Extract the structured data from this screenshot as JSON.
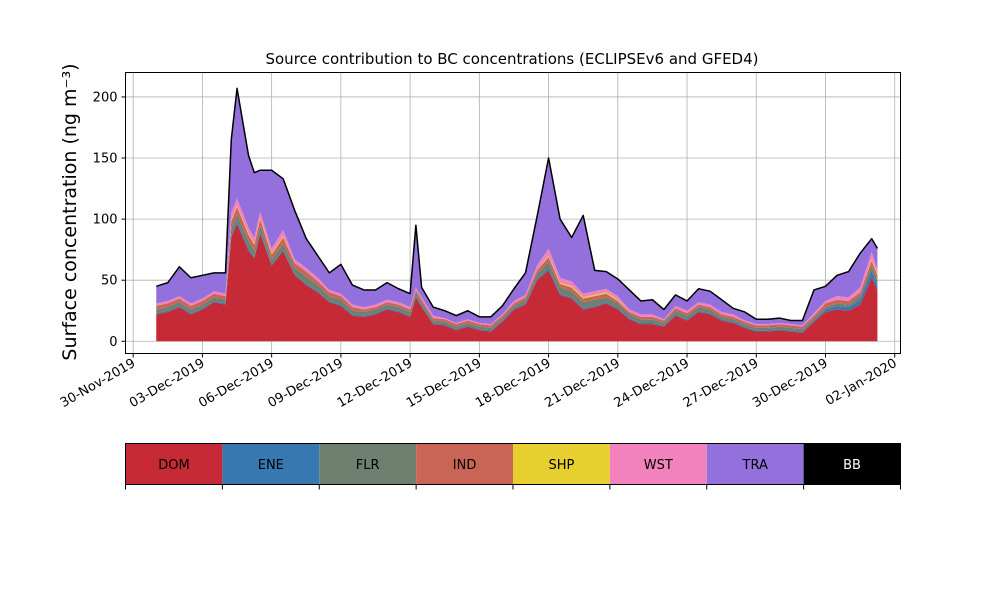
{
  "chart_data": {
    "type": "area",
    "title": "Source contribution to BC concentrations (ECLIPSEv6 and GFED4)",
    "ylabel": "Surface concentration (ng m⁻³)",
    "xlabel": "",
    "xlim": [
      "2019-11-29T16:00",
      "2020-01-02T06:00"
    ],
    "ylim": [
      -10,
      220
    ],
    "grid": true,
    "x_ticks": [
      "2019-11-30",
      "2019-12-03",
      "2019-12-06",
      "2019-12-09",
      "2019-12-12",
      "2019-12-15",
      "2019-12-18",
      "2019-12-21",
      "2019-12-24",
      "2019-12-27",
      "2019-12-30",
      "2020-01-02"
    ],
    "x_tick_labels": [
      "30-Nov-2019",
      "03-Dec-2019",
      "06-Dec-2019",
      "09-Dec-2019",
      "12-Dec-2019",
      "15-Dec-2019",
      "18-Dec-2019",
      "21-Dec-2019",
      "24-Dec-2019",
      "27-Dec-2019",
      "30-Dec-2019",
      "02-Jan-2020"
    ],
    "y_ticks": [
      0,
      50,
      100,
      150,
      200
    ],
    "y_tick_labels": [
      "0",
      "50",
      "100",
      "150",
      "200"
    ],
    "legend": {
      "placement": "bottom",
      "entries": [
        {
          "label": "DOM",
          "color": "#c62a37",
          "text_color": "#000000"
        },
        {
          "label": "ENE",
          "color": "#3878b0",
          "text_color": "#000000"
        },
        {
          "label": "FLR",
          "color": "#6e8070",
          "text_color": "#000000"
        },
        {
          "label": "IND",
          "color": "#c96556",
          "text_color": "#000000"
        },
        {
          "label": "SHP",
          "color": "#e6cf2e",
          "text_color": "#000000"
        },
        {
          "label": "WST",
          "color": "#f282bd",
          "text_color": "#000000"
        },
        {
          "label": "TRA",
          "color": "#9370db",
          "text_color": "#000000"
        },
        {
          "label": "BB",
          "color": "#000000",
          "text_color": "#ffffff"
        }
      ]
    },
    "total_line_color": "#000000",
    "series_order": [
      "DOM",
      "ENE",
      "FLR",
      "IND",
      "SHP",
      "WST",
      "TRA",
      "BB"
    ],
    "dates": [
      "2019-12-01T00:00",
      "2019-12-01T12:00",
      "2019-12-02T00:00",
      "2019-12-02T12:00",
      "2019-12-03T00:00",
      "2019-12-03T12:00",
      "2019-12-04T00:00",
      "2019-12-04T06:00",
      "2019-12-04T12:00",
      "2019-12-05T00:00",
      "2019-12-05T06:00",
      "2019-12-05T12:00",
      "2019-12-06T00:00",
      "2019-12-06T12:00",
      "2019-12-07T00:00",
      "2019-12-07T12:00",
      "2019-12-08T00:00",
      "2019-12-08T12:00",
      "2019-12-09T00:00",
      "2019-12-09T12:00",
      "2019-12-10T00:00",
      "2019-12-10T12:00",
      "2019-12-11T00:00",
      "2019-12-11T12:00",
      "2019-12-12T00:00",
      "2019-12-12T06:00",
      "2019-12-12T12:00",
      "2019-12-13T00:00",
      "2019-12-13T12:00",
      "2019-12-14T00:00",
      "2019-12-14T12:00",
      "2019-12-15T00:00",
      "2019-12-15T12:00",
      "2019-12-16T00:00",
      "2019-12-16T12:00",
      "2019-12-17T00:00",
      "2019-12-17T12:00",
      "2019-12-18T00:00",
      "2019-12-18T12:00",
      "2019-12-19T00:00",
      "2019-12-19T12:00",
      "2019-12-20T00:00",
      "2019-12-20T12:00",
      "2019-12-21T00:00",
      "2019-12-21T12:00",
      "2019-12-22T00:00",
      "2019-12-22T12:00",
      "2019-12-23T00:00",
      "2019-12-23T12:00",
      "2019-12-24T00:00",
      "2019-12-24T12:00",
      "2019-12-25T00:00",
      "2019-12-25T12:00",
      "2019-12-26T00:00",
      "2019-12-26T12:00",
      "2019-12-27T00:00",
      "2019-12-27T12:00",
      "2019-12-28T00:00",
      "2019-12-28T12:00",
      "2019-12-29T00:00",
      "2019-12-29T12:00",
      "2019-12-30T00:00",
      "2019-12-30T12:00",
      "2019-12-31T00:00",
      "2019-12-31T12:00",
      "2020-01-01T00:00",
      "2020-01-01T06:00"
    ],
    "series": [
      {
        "name": "DOM",
        "values": [
          22,
          24,
          28,
          22,
          26,
          32,
          30,
          85,
          96,
          74,
          68,
          88,
          62,
          74,
          54,
          46,
          40,
          32,
          29,
          21,
          20,
          22,
          26,
          24,
          20,
          36,
          28,
          14,
          13,
          9,
          12,
          9,
          8,
          16,
          26,
          30,
          50,
          58,
          38,
          35,
          26,
          28,
          31,
          26,
          18,
          14,
          14,
          12,
          21,
          17,
          24,
          22,
          17,
          15,
          11,
          8,
          8,
          9,
          8,
          7,
          16,
          24,
          26,
          25,
          30,
          52,
          42
        ]
      },
      {
        "name": "ENE",
        "values": [
          1,
          1,
          1,
          1,
          1,
          1,
          1,
          2,
          2,
          2,
          1,
          2,
          1,
          1,
          1,
          1,
          1,
          1,
          1,
          1,
          1,
          1,
          1,
          1,
          1,
          1,
          1,
          1,
          1,
          1,
          1,
          1,
          1,
          1,
          1,
          1,
          1,
          2,
          1,
          1,
          1,
          1,
          1,
          1,
          1,
          1,
          1,
          1,
          1,
          1,
          1,
          1,
          1,
          1,
          1,
          1,
          1,
          1,
          1,
          1,
          1,
          2,
          3,
          3,
          4,
          6,
          4
        ]
      },
      {
        "name": "FLR",
        "values": [
          3,
          3,
          3,
          3,
          3,
          3,
          3,
          5,
          6,
          6,
          5,
          5,
          4,
          5,
          5,
          6,
          5,
          4,
          4,
          3,
          3,
          3,
          3,
          3,
          3,
          3,
          3,
          2,
          2,
          2,
          2,
          2,
          2,
          2,
          2,
          3,
          4,
          5,
          5,
          5,
          5,
          5,
          4,
          4,
          3,
          3,
          3,
          2,
          3,
          3,
          3,
          3,
          2,
          2,
          2,
          2,
          2,
          2,
          2,
          2,
          2,
          2,
          2,
          2,
          3,
          4,
          4
        ]
      },
      {
        "name": "IND",
        "values": [
          3,
          3,
          3,
          3,
          3,
          3,
          3,
          6,
          6,
          5,
          5,
          5,
          4,
          5,
          4,
          4,
          3,
          3,
          3,
          3,
          2,
          2,
          2,
          2,
          2,
          2,
          2,
          2,
          2,
          2,
          2,
          2,
          2,
          2,
          2,
          2,
          3,
          4,
          3,
          3,
          3,
          3,
          3,
          2,
          2,
          2,
          2,
          2,
          2,
          2,
          2,
          2,
          2,
          2,
          2,
          2,
          2,
          2,
          2,
          2,
          2,
          3,
          3,
          3,
          3,
          4,
          4
        ]
      },
      {
        "name": "SHP",
        "values": [
          0,
          0,
          0,
          0,
          0,
          0,
          0,
          1,
          1,
          1,
          1,
          1,
          1,
          1,
          0,
          0,
          0,
          0,
          0,
          0,
          0,
          0,
          0,
          0,
          0,
          0,
          0,
          0,
          0,
          0,
          0,
          0,
          0,
          0,
          0,
          0,
          0,
          1,
          1,
          1,
          1,
          1,
          1,
          1,
          0,
          0,
          0,
          0,
          0,
          0,
          0,
          0,
          0,
          0,
          0,
          0,
          0,
          0,
          0,
          0,
          0,
          0,
          0,
          0,
          0,
          1,
          1
        ]
      },
      {
        "name": "WST",
        "values": [
          2,
          2,
          2,
          2,
          2,
          2,
          2,
          6,
          6,
          5,
          5,
          5,
          4,
          5,
          3,
          3,
          3,
          2,
          2,
          2,
          2,
          2,
          2,
          2,
          2,
          2,
          2,
          2,
          1,
          1,
          1,
          1,
          1,
          1,
          2,
          2,
          4,
          6,
          4,
          4,
          3,
          3,
          3,
          3,
          2,
          2,
          2,
          1,
          2,
          2,
          2,
          2,
          2,
          2,
          1,
          1,
          1,
          1,
          1,
          1,
          2,
          2,
          3,
          3,
          4,
          6,
          4
        ]
      },
      {
        "name": "TRA",
        "values": [
          14,
          15,
          24,
          21,
          19,
          15,
          17,
          60,
          90,
          59,
          53,
          34,
          64,
          42,
          40,
          24,
          18,
          14,
          24,
          16,
          14,
          12,
          14,
          11,
          11,
          51,
          8,
          7,
          6,
          6,
          7,
          5,
          6,
          7,
          10,
          18,
          40,
          74,
          48,
          36,
          64,
          17,
          14,
          14,
          16,
          11,
          12,
          8,
          9,
          8,
          11,
          11,
          10,
          5,
          7,
          4,
          4,
          4,
          3,
          4,
          19,
          12,
          17,
          21,
          28,
          11,
          17
        ]
      },
      {
        "name": "BB",
        "values": [
          0,
          0,
          0,
          0,
          0,
          0,
          0,
          0,
          0,
          0,
          0,
          0,
          0,
          0,
          0,
          0,
          0,
          0,
          0,
          0,
          0,
          0,
          0,
          0,
          0,
          0,
          0,
          0,
          0,
          0,
          0,
          0,
          0,
          0,
          0,
          0,
          0,
          0,
          0,
          0,
          0,
          0,
          0,
          0,
          0,
          0,
          0,
          0,
          0,
          0,
          0,
          0,
          0,
          0,
          0,
          0,
          0,
          0,
          0,
          0,
          0,
          0,
          0,
          0,
          0,
          0,
          0
        ]
      }
    ]
  }
}
